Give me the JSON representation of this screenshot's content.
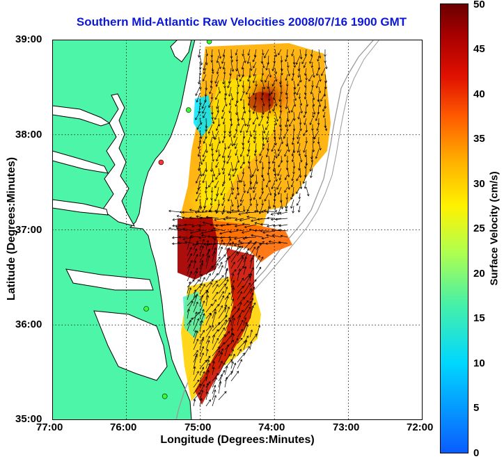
{
  "title": "Southern Mid-Atlantic Raw Velocities 2008/07/16 1900 GMT",
  "x_axis": {
    "label": "Longitude (Degrees:Minutes)",
    "ticks": [
      "77:00",
      "76:00",
      "75:00",
      "74:00",
      "73:00",
      "72:00"
    ]
  },
  "y_axis": {
    "label": "Latitude (Degrees:Minutes)",
    "ticks": [
      "39:00",
      "38:00",
      "37:00",
      "36:00",
      "35:00"
    ]
  },
  "colorbar": {
    "label": "Surface Velocity (cm/s)",
    "ticks": [
      "50",
      "45",
      "40",
      "35",
      "30",
      "25",
      "20",
      "15",
      "10",
      "5",
      "0"
    ],
    "range": [
      0,
      50
    ],
    "colors": [
      "#0a5cff",
      "#00d7ff",
      "#46f0a8",
      "#b2ff4c",
      "#fff200",
      "#ffb000",
      "#ff5a00",
      "#e01000",
      "#a80000",
      "#6a0000"
    ]
  },
  "map": {
    "land_color": "#4cf5a8",
    "coastline_color": "#000000",
    "bathymetry_color": "#9a9a9a",
    "grid": "dotted",
    "lon_range": [
      -77,
      -72
    ],
    "lat_range": [
      35,
      39
    ],
    "station_markers": [
      {
        "lon": -74.88,
        "lat": 38.98,
        "color": "#33ff33"
      },
      {
        "lon": -75.16,
        "lat": 38.26,
        "color": "#33ff33"
      },
      {
        "lon": -75.53,
        "lat": 37.71,
        "color": "#ff3333"
      },
      {
        "lon": -75.73,
        "lat": 36.17,
        "color": "#33ff33"
      },
      {
        "lon": -75.48,
        "lat": 35.25,
        "color": "#33ff33"
      }
    ]
  }
}
